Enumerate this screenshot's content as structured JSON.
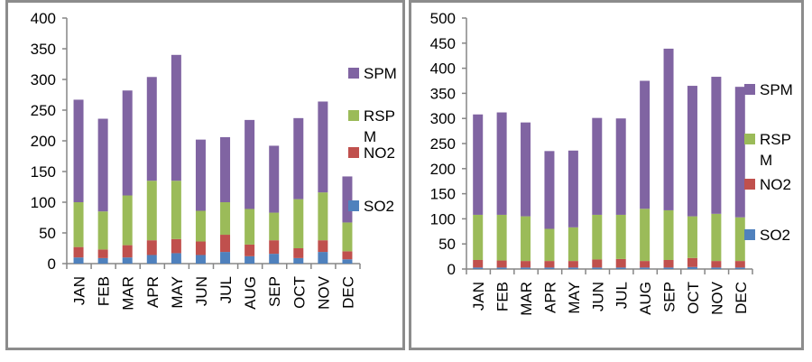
{
  "colors": {
    "SO2": "#4f81bd",
    "NO2": "#c0504d",
    "RSPM": "#9bbb59",
    "SPM": "#8064a2",
    "axis": "#868686",
    "frame": "#8c8c8c"
  },
  "chart_data": [
    {
      "type": "bar",
      "stacked": true,
      "title": "",
      "xlabel": "",
      "ylabel": "",
      "ylim": [
        0,
        400
      ],
      "yticks": [
        "0",
        "50",
        "100",
        "150",
        "200",
        "250",
        "300",
        "350",
        "400"
      ],
      "categories": [
        "JAN",
        "FEB",
        "MAR",
        "APR",
        "MAY",
        "JUN",
        "JUL",
        "AUG",
        "SEP",
        "OCT",
        "NOV",
        "DEC"
      ],
      "legend": {
        "position": "right",
        "entries": [
          "SPM",
          "RSP M",
          "NO2",
          "SO2"
        ]
      },
      "grid": false,
      "series": [
        {
          "name": "SO2",
          "values": [
            10,
            9,
            10,
            14,
            17,
            14,
            19,
            12,
            16,
            9,
            19,
            7
          ]
        },
        {
          "name": "NO2",
          "values": [
            17,
            14,
            20,
            24,
            23,
            22,
            28,
            19,
            22,
            16,
            19,
            13
          ]
        },
        {
          "name": "RSPM",
          "values": [
            73,
            62,
            81,
            97,
            95,
            50,
            53,
            58,
            45,
            80,
            78,
            47
          ]
        },
        {
          "name": "SPM",
          "values": [
            167,
            151,
            171,
            169,
            205,
            116,
            106,
            145,
            109,
            132,
            148,
            75
          ]
        }
      ]
    },
    {
      "type": "bar",
      "stacked": true,
      "title": "",
      "xlabel": "",
      "ylabel": "",
      "ylim": [
        0,
        500
      ],
      "yticks": [
        "0",
        "50",
        "100",
        "150",
        "200",
        "250",
        "300",
        "350",
        "400",
        "450",
        "500"
      ],
      "categories": [
        "JAN",
        "FEB",
        "MAR",
        "APR",
        "MAY",
        "JUN",
        "JUL",
        "AUG",
        "SEP",
        "OCT",
        "NOV",
        "DEC"
      ],
      "legend": {
        "position": "right",
        "entries": [
          "SPM",
          "RSP M",
          "NO2",
          "SO2"
        ]
      },
      "grid": false,
      "series": [
        {
          "name": "SO2",
          "values": [
            3,
            3,
            3,
            3,
            3,
            3,
            3,
            3,
            3,
            4,
            3,
            3
          ]
        },
        {
          "name": "NO2",
          "values": [
            15,
            14,
            13,
            13,
            13,
            16,
            17,
            13,
            15,
            18,
            13,
            13
          ]
        },
        {
          "name": "RSPM",
          "values": [
            90,
            91,
            89,
            64,
            67,
            89,
            88,
            104,
            99,
            83,
            94,
            87
          ]
        },
        {
          "name": "SPM",
          "values": [
            200,
            204,
            187,
            155,
            153,
            193,
            192,
            255,
            322,
            260,
            273,
            260
          ]
        }
      ]
    }
  ]
}
